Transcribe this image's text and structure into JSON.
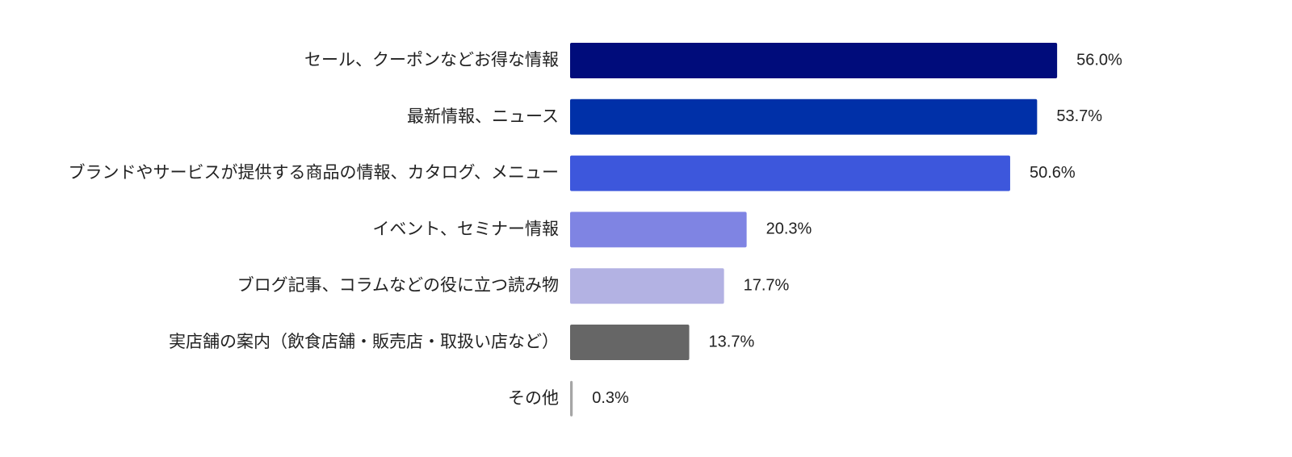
{
  "chart_data": {
    "type": "bar",
    "orientation": "horizontal",
    "categories": [
      "セール、クーポンなどお得な情報",
      "最新情報、ニュース",
      "ブランドやサービスが提供する商品の情報、カタログ、メニュー",
      "イベント、セミナー情報",
      "ブログ記事、コラムなどの役に立つ読み物",
      "実店舗の案内（飲食店舗・販売店・取扱い店など）",
      "その他"
    ],
    "values": [
      56.0,
      53.7,
      50.6,
      20.3,
      17.7,
      13.7,
      0.3
    ],
    "value_labels": [
      "56.0%",
      "53.7%",
      "50.6%",
      "20.3%",
      "17.7%",
      "13.7%",
      "0.3%"
    ],
    "colors": [
      "#000c7b",
      "#0030a8",
      "#3d57dc",
      "#7f84e3",
      "#b3b2e3",
      "#666666",
      "#a6a6a6"
    ],
    "title": "",
    "xlabel": "",
    "ylabel": "",
    "xlim": [
      0,
      100
    ],
    "grid": false,
    "legend": "none"
  }
}
